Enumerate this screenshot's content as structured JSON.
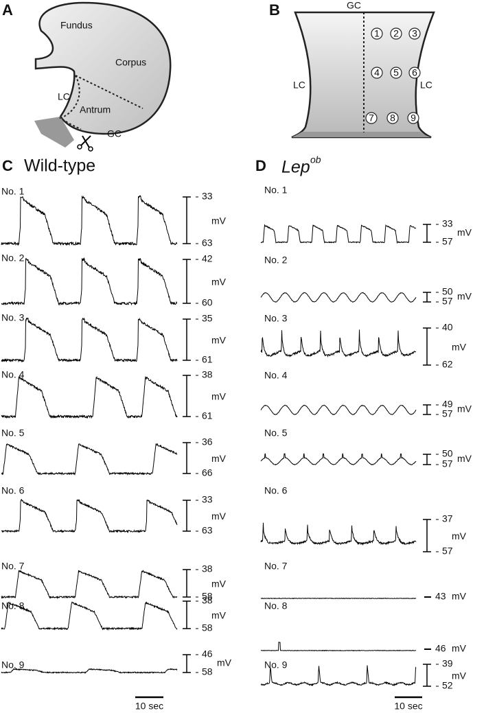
{
  "panels": {
    "A": {
      "label": "A",
      "regions": [
        "Fundus",
        "Corpus",
        "LC",
        "Antrum",
        "GC"
      ]
    },
    "B": {
      "label": "B",
      "top": "GC",
      "left": "LC",
      "right": "LC",
      "sites": [
        1,
        2,
        3,
        4,
        5,
        6,
        7,
        8,
        9
      ]
    },
    "C": {
      "label": "C",
      "title": "Wild-type",
      "time_scale": "10 sec",
      "traces": [
        {
          "name": "No. 1",
          "top": 33,
          "bottom": 63,
          "unit": "mV"
        },
        {
          "name": "No. 2",
          "top": 42,
          "bottom": 60,
          "unit": "mV"
        },
        {
          "name": "No. 3",
          "top": 35,
          "bottom": 61,
          "unit": "mV"
        },
        {
          "name": "No. 4",
          "top": 38,
          "bottom": 61,
          "unit": "mV"
        },
        {
          "name": "No. 5",
          "top": 36,
          "bottom": 66,
          "unit": "mV"
        },
        {
          "name": "No. 6",
          "top": 33,
          "bottom": 63,
          "unit": "mV"
        },
        {
          "name": "No. 7",
          "top": 38,
          "bottom": 58,
          "unit": "mV"
        },
        {
          "name": "No. 8",
          "top": 38,
          "bottom": 58,
          "unit": "mV"
        },
        {
          "name": "No. 9",
          "top": 46,
          "bottom": 58,
          "unit": "mV"
        }
      ]
    },
    "D": {
      "label": "D",
      "title": "Lep",
      "title_sup": "ob",
      "time_scale": "10 sec",
      "traces": [
        {
          "name": "No. 1",
          "top": 33,
          "bottom": 57,
          "unit": "mV"
        },
        {
          "name": "No. 2",
          "top": 50,
          "bottom": 57,
          "unit": "mV"
        },
        {
          "name": "No. 3",
          "top": 40,
          "bottom": 62,
          "unit": "mV"
        },
        {
          "name": "No. 4",
          "top": 49,
          "bottom": 57,
          "unit": "mV"
        },
        {
          "name": "No. 5",
          "top": 50,
          "bottom": 57,
          "unit": "mV"
        },
        {
          "name": "No. 6",
          "top": 37,
          "bottom": 57,
          "unit": "mV"
        },
        {
          "name": "No. 7",
          "level": 43,
          "unit": "mV"
        },
        {
          "name": "No. 8",
          "level": 46,
          "unit": "mV"
        },
        {
          "name": "No. 9",
          "top": 39,
          "bottom": 52,
          "unit": "mV"
        }
      ]
    }
  }
}
